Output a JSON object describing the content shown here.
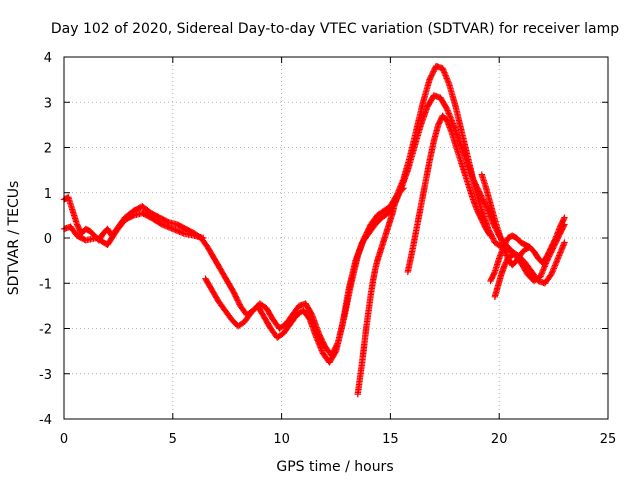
{
  "chart_data": {
    "type": "scatter",
    "title": "Day 102 of 2020, Sidereal Day-to-day VTEC variation (SDTVAR) for receiver lamp",
    "xlabel": "GPS time / hours",
    "ylabel": "SDTVAR / TECUs",
    "xlim": [
      0,
      25
    ],
    "ylim": [
      -4,
      4
    ],
    "xticks": [
      0,
      5,
      10,
      15,
      20,
      25
    ],
    "yticks": [
      -4,
      -3,
      -2,
      -1,
      0,
      1,
      2,
      3,
      4
    ],
    "x_tick_labels": [
      "0",
      "5",
      "10",
      "15",
      "20",
      "25"
    ],
    "y_tick_labels": [
      "-4",
      "-3",
      "-2",
      "-1",
      "0",
      "1",
      "2",
      "3",
      "4"
    ],
    "grid": true,
    "marker": "+",
    "series_color": "#ff0000",
    "series": [
      {
        "x": [
          0.0,
          0.2,
          0.4,
          0.6,
          0.8,
          1.0,
          1.2,
          1.4,
          1.6,
          1.8,
          2.0,
          2.2,
          2.5,
          2.8,
          3.2,
          3.6,
          4.0,
          4.4,
          4.8,
          5.2,
          5.6,
          6.0,
          6.3,
          6.6,
          6.9,
          7.2,
          7.5,
          7.8,
          8.1,
          8.4,
          8.7,
          9.0,
          9.3,
          9.6,
          9.9,
          10.2,
          10.5,
          10.8,
          11.1,
          11.4,
          11.7,
          12.0,
          12.3,
          12.6,
          12.9,
          13.2,
          13.5,
          13.8,
          14.1,
          14.4,
          14.7,
          15.0,
          15.3,
          15.6,
          15.9,
          16.2,
          16.5,
          16.8,
          17.1,
          17.4,
          17.7,
          18.0,
          18.3,
          18.6,
          18.9,
          19.2,
          19.5,
          19.8,
          20.1,
          20.4,
          20.7,
          21.0,
          21.3,
          21.6,
          21.9,
          22.2,
          22.5,
          22.8,
          23.0
        ],
        "y": [
          0.85,
          0.9,
          0.6,
          0.3,
          0.1,
          0.2,
          0.15,
          0.05,
          -0.05,
          0.1,
          0.2,
          0.05,
          0.25,
          0.45,
          0.6,
          0.7,
          0.55,
          0.45,
          0.35,
          0.3,
          0.2,
          0.1,
          0.0,
          -0.2,
          -0.45,
          -0.7,
          -0.95,
          -1.2,
          -1.5,
          -1.7,
          -1.6,
          -1.45,
          -1.55,
          -1.8,
          -2.0,
          -1.9,
          -1.7,
          -1.5,
          -1.45,
          -1.7,
          -2.1,
          -2.4,
          -2.6,
          -2.3,
          -1.7,
          -1.0,
          -0.4,
          0.0,
          0.3,
          0.5,
          0.6,
          0.7,
          0.95,
          1.3,
          1.8,
          2.4,
          3.0,
          3.5,
          3.8,
          3.75,
          3.4,
          2.9,
          2.3,
          1.7,
          1.1,
          0.6,
          0.2,
          -0.1,
          -0.2,
          -0.25,
          -0.35,
          -0.55,
          -0.8,
          -0.95,
          -0.85,
          -0.5,
          -0.2,
          0.1,
          0.3
        ]
      },
      {
        "x": [
          0.0,
          0.3,
          0.6,
          1.0,
          1.5,
          2.0,
          2.4,
          2.8,
          3.2,
          3.6,
          4.0,
          4.5,
          5.0,
          5.5,
          6.0,
          6.4
        ],
        "y": [
          0.2,
          0.25,
          0.05,
          -0.05,
          0.0,
          -0.15,
          0.15,
          0.4,
          0.5,
          0.55,
          0.45,
          0.3,
          0.2,
          0.1,
          0.05,
          0.0
        ]
      },
      {
        "x": [
          6.5,
          6.8,
          7.1,
          7.4,
          7.7,
          8.0,
          8.3,
          8.6,
          8.9,
          9.2,
          9.5,
          9.8,
          10.1,
          10.4,
          10.7,
          11.0,
          11.3,
          11.6,
          11.9,
          12.2,
          12.5,
          12.8,
          13.1,
          13.4,
          13.7,
          14.0,
          14.3,
          14.6,
          14.9,
          15.2,
          15.5,
          15.8,
          16.1,
          16.4,
          16.7,
          17.0,
          17.3,
          17.6,
          17.9,
          18.2,
          18.5,
          18.8,
          19.1,
          19.4,
          19.7,
          20.0,
          20.3,
          20.6,
          20.9,
          21.2,
          21.5,
          21.8,
          22.1,
          22.4,
          22.7,
          23.0
        ],
        "y": [
          -0.9,
          -1.15,
          -1.4,
          -1.6,
          -1.8,
          -1.95,
          -1.85,
          -1.65,
          -1.5,
          -1.75,
          -2.0,
          -2.2,
          -2.1,
          -1.9,
          -1.7,
          -1.6,
          -1.8,
          -2.2,
          -2.55,
          -2.75,
          -2.5,
          -1.9,
          -1.1,
          -0.5,
          -0.1,
          0.1,
          0.3,
          0.45,
          0.55,
          0.75,
          1.1,
          1.5,
          2.0,
          2.5,
          2.9,
          3.15,
          3.1,
          2.85,
          2.5,
          2.1,
          1.7,
          1.3,
          1.0,
          0.7,
          0.35,
          0.05,
          -0.15,
          -0.3,
          -0.4,
          -0.55,
          -0.75,
          -0.95,
          -1.0,
          -0.8,
          -0.45,
          -0.1
        ]
      },
      {
        "x": [
          13.5,
          13.6,
          13.7,
          13.8,
          13.9,
          14.0,
          14.1,
          14.2,
          14.3,
          14.4,
          14.5,
          14.6,
          14.7,
          14.8,
          14.9,
          15.0,
          15.1,
          15.2,
          15.3,
          15.4,
          15.5,
          15.6
        ],
        "y": [
          -3.45,
          -3.1,
          -2.75,
          -2.35,
          -1.95,
          -1.6,
          -1.25,
          -0.95,
          -0.7,
          -0.5,
          -0.35,
          -0.2,
          -0.05,
          0.1,
          0.25,
          0.4,
          0.55,
          0.75,
          0.9,
          1.0,
          1.05,
          1.1
        ]
      },
      {
        "x": [
          15.8,
          16.0,
          16.2,
          16.4,
          16.6,
          16.8,
          17.0,
          17.2,
          17.4,
          17.6,
          17.8,
          18.0,
          18.2,
          18.4,
          18.6,
          18.8,
          19.0,
          19.2,
          19.4,
          19.6
        ],
        "y": [
          -0.75,
          -0.3,
          0.2,
          0.7,
          1.2,
          1.7,
          2.15,
          2.5,
          2.7,
          2.6,
          2.35,
          2.05,
          1.75,
          1.45,
          1.15,
          0.85,
          0.6,
          0.4,
          0.2,
          0.05
        ]
      },
      {
        "x": [
          19.2,
          19.4,
          19.6,
          19.8,
          20.0,
          20.2,
          20.4,
          20.6,
          20.8,
          21.0,
          21.2,
          21.4,
          21.6,
          21.8,
          22.0,
          22.2,
          22.4,
          22.6,
          22.8,
          23.0
        ],
        "y": [
          1.4,
          1.1,
          0.75,
          0.4,
          0.1,
          -0.2,
          -0.45,
          -0.6,
          -0.5,
          -0.35,
          -0.25,
          -0.2,
          -0.3,
          -0.45,
          -0.55,
          -0.4,
          -0.2,
          0.0,
          0.25,
          0.45
        ]
      },
      {
        "x": [
          19.6,
          19.8,
          20.0,
          20.2,
          20.4,
          20.6,
          20.8,
          21.0,
          21.2,
          21.4
        ],
        "y": [
          -0.95,
          -0.75,
          -0.45,
          -0.2,
          0.0,
          0.05,
          0.0,
          -0.1,
          -0.15,
          -0.2
        ]
      },
      {
        "x": [
          19.8,
          19.95,
          20.1,
          20.25,
          20.4,
          20.55,
          20.7
        ],
        "y": [
          -1.3,
          -1.05,
          -0.8,
          -0.6,
          -0.45,
          -0.4,
          -0.35
        ]
      }
    ]
  }
}
